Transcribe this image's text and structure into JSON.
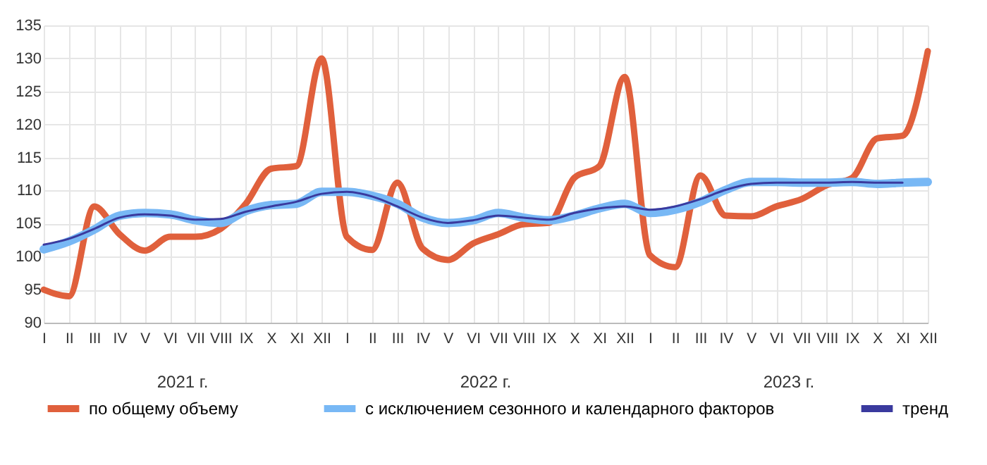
{
  "chart_data": {
    "type": "line",
    "categories": [
      "I",
      "II",
      "III",
      "IV",
      "V",
      "VI",
      "VII",
      "VIII",
      "IX",
      "X",
      "XI",
      "XII",
      "I",
      "II",
      "III",
      "IV",
      "V",
      "VI",
      "VII",
      "VIII",
      "IX",
      "X",
      "XI",
      "XII",
      "I",
      "II",
      "III",
      "IV",
      "V",
      "VI",
      "VII",
      "VIII",
      "IX",
      "X",
      "XI",
      "XII"
    ],
    "series": [
      {
        "name": "по общему объему",
        "color": "#e0603c",
        "values": [
          95.0,
          94.0,
          107.6,
          103.4,
          100.9,
          103.0,
          103.0,
          104.2,
          108.0,
          113.3,
          113.7,
          130.0,
          103.0,
          101.0,
          111.2,
          101.2,
          99.5,
          102.0,
          103.4,
          104.9,
          105.1,
          111.9,
          113.7,
          127.2,
          100.2,
          98.4,
          112.3,
          106.2,
          106.1,
          107.6,
          108.7,
          110.8,
          111.9,
          117.9,
          118.3,
          131.1
        ]
      },
      {
        "name": "с исключением сезонного и календарного факторов",
        "color": "#78b8f5",
        "values": [
          101.1,
          102.3,
          104.1,
          106.2,
          106.6,
          106.4,
          105.5,
          105.1,
          106.9,
          107.8,
          108.0,
          109.8,
          109.8,
          109.2,
          108.0,
          105.9,
          105.1,
          105.5,
          106.6,
          105.9,
          105.5,
          106.2,
          107.3,
          108.0,
          106.6,
          107.1,
          108.3,
          110.1,
          111.3,
          111.3,
          111.2,
          111.2,
          111.3,
          111.0,
          111.2,
          111.3
        ]
      },
      {
        "name": "тренд",
        "color": "#3a3a9e",
        "values": [
          101.8,
          102.7,
          104.2,
          105.9,
          106.4,
          106.2,
          105.6,
          105.7,
          106.8,
          107.6,
          108.3,
          109.5,
          109.8,
          109.1,
          107.6,
          105.9,
          105.1,
          105.5,
          106.2,
          105.9,
          105.6,
          106.6,
          107.3,
          107.6,
          107.1,
          107.6,
          108.7,
          110.1,
          111.0,
          111.2,
          111.2,
          111.2,
          111.3,
          111.2,
          111.2,
          null
        ]
      }
    ],
    "ylim": [
      90,
      135
    ],
    "yticks": [
      90,
      95,
      100,
      105,
      110,
      115,
      120,
      125,
      130,
      135
    ],
    "annotations": [
      "2021 г.",
      "2022 г.",
      "2023 г."
    ],
    "grid": true,
    "legend": "bottom",
    "marker": "none",
    "line_style": "solid"
  }
}
